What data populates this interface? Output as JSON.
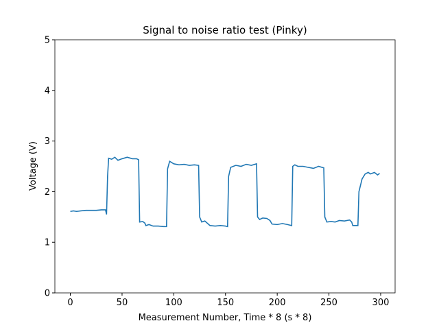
{
  "chart_data": {
    "type": "line",
    "title": "Signal to noise ratio test (Pinky)",
    "x_label": "Measurement Number, Time * 8 (s * 8)",
    "y_label": "Voltage (V)",
    "x": [
      0,
      3,
      6,
      10,
      15,
      20,
      25,
      30,
      34,
      35,
      36,
      37,
      40,
      43,
      46,
      50,
      55,
      60,
      64,
      66,
      67,
      70,
      72,
      73,
      76,
      80,
      85,
      90,
      93,
      94,
      96,
      100,
      105,
      110,
      115,
      120,
      124,
      125,
      127,
      130,
      135,
      140,
      145,
      150,
      152,
      153,
      155,
      160,
      165,
      170,
      175,
      180,
      181,
      183,
      186,
      190,
      193,
      195,
      200,
      205,
      210,
      214,
      215,
      217,
      220,
      225,
      230,
      235,
      240,
      245,
      246,
      248,
      252,
      256,
      260,
      265,
      270,
      272,
      273,
      276,
      278,
      279,
      282,
      285,
      288,
      290,
      294,
      297,
      299
    ],
    "series": [
      {
        "name": "Voltage",
        "color": "#1f77b4",
        "values": [
          1.61,
          1.62,
          1.61,
          1.62,
          1.63,
          1.63,
          1.63,
          1.64,
          1.64,
          1.55,
          2.3,
          2.66,
          2.64,
          2.68,
          2.62,
          2.65,
          2.68,
          2.65,
          2.65,
          2.63,
          1.4,
          1.41,
          1.38,
          1.33,
          1.35,
          1.32,
          1.32,
          1.31,
          1.31,
          2.45,
          2.6,
          2.55,
          2.53,
          2.54,
          2.52,
          2.53,
          2.52,
          1.5,
          1.4,
          1.42,
          1.33,
          1.32,
          1.33,
          1.32,
          1.31,
          2.3,
          2.48,
          2.52,
          2.5,
          2.54,
          2.52,
          2.55,
          1.5,
          1.45,
          1.48,
          1.47,
          1.43,
          1.36,
          1.35,
          1.37,
          1.35,
          1.33,
          2.5,
          2.53,
          2.5,
          2.5,
          2.48,
          2.46,
          2.5,
          2.47,
          1.5,
          1.4,
          1.41,
          1.4,
          1.43,
          1.42,
          1.44,
          1.4,
          1.33,
          1.33,
          1.33,
          2.0,
          2.25,
          2.35,
          2.38,
          2.35,
          2.38,
          2.33,
          2.36
        ]
      }
    ],
    "xlim": [
      -14.95,
      313.95
    ],
    "xticks": [
      0,
      50,
      100,
      150,
      200,
      250,
      300
    ],
    "ylim": [
      0,
      5
    ],
    "yticks": [
      0,
      1,
      2,
      3,
      4,
      5
    ],
    "grid": false
  }
}
